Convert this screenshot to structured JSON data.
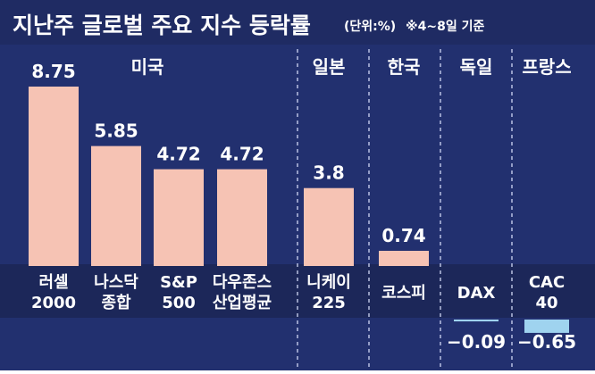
{
  "header": {
    "title": "지난주 글로벌 주요 지수 등락률",
    "unit": "(단위:%)",
    "note": "※4~8일 기준"
  },
  "colors": {
    "background": "#22306f",
    "header_background": "#1f2b63",
    "positive_bar": "#f6c3b4",
    "negative_bar": "#9fd3ef",
    "label_band": "#1c2759",
    "text": "#ffffff",
    "divider": "#c9d0ee"
  },
  "chart_data": {
    "type": "bar",
    "unit": "%",
    "groups": [
      {
        "name": "미국",
        "categories": [
          "러셀 2000",
          "나스닥 종합",
          "S&P 500",
          "다우존스 산업평균"
        ]
      },
      {
        "name": "일본",
        "categories": [
          "니케이 225"
        ]
      },
      {
        "name": "한국",
        "categories": [
          "코스피"
        ]
      },
      {
        "name": "독일",
        "categories": [
          "DAX"
        ]
      },
      {
        "name": "프랑스",
        "categories": [
          "CAC 40"
        ]
      }
    ],
    "categories": [
      "러셀 2000",
      "나스닥 종합",
      "S&P 500",
      "다우존스 산업평균",
      "니케이 225",
      "코스피",
      "DAX",
      "CAC 40"
    ],
    "category_label_lines": [
      [
        "러셀",
        "2000"
      ],
      [
        "나스닥",
        "종합"
      ],
      [
        "S&P",
        "500"
      ],
      [
        "다우존스",
        "산업평균"
      ],
      [
        "니케이",
        "225"
      ],
      [
        "코스피"
      ],
      [
        "DAX"
      ],
      [
        "CAC",
        "40"
      ]
    ],
    "values": [
      8.75,
      5.85,
      4.72,
      4.72,
      3.8,
      0.74,
      -0.09,
      -0.65
    ],
    "value_labels": [
      "8.75",
      "5.85",
      "4.72",
      "4.72",
      "3.8",
      "0.74",
      "−0.09",
      "−0.65"
    ],
    "ylim": [
      -0.65,
      8.75
    ],
    "grid": false,
    "legend": "none"
  }
}
